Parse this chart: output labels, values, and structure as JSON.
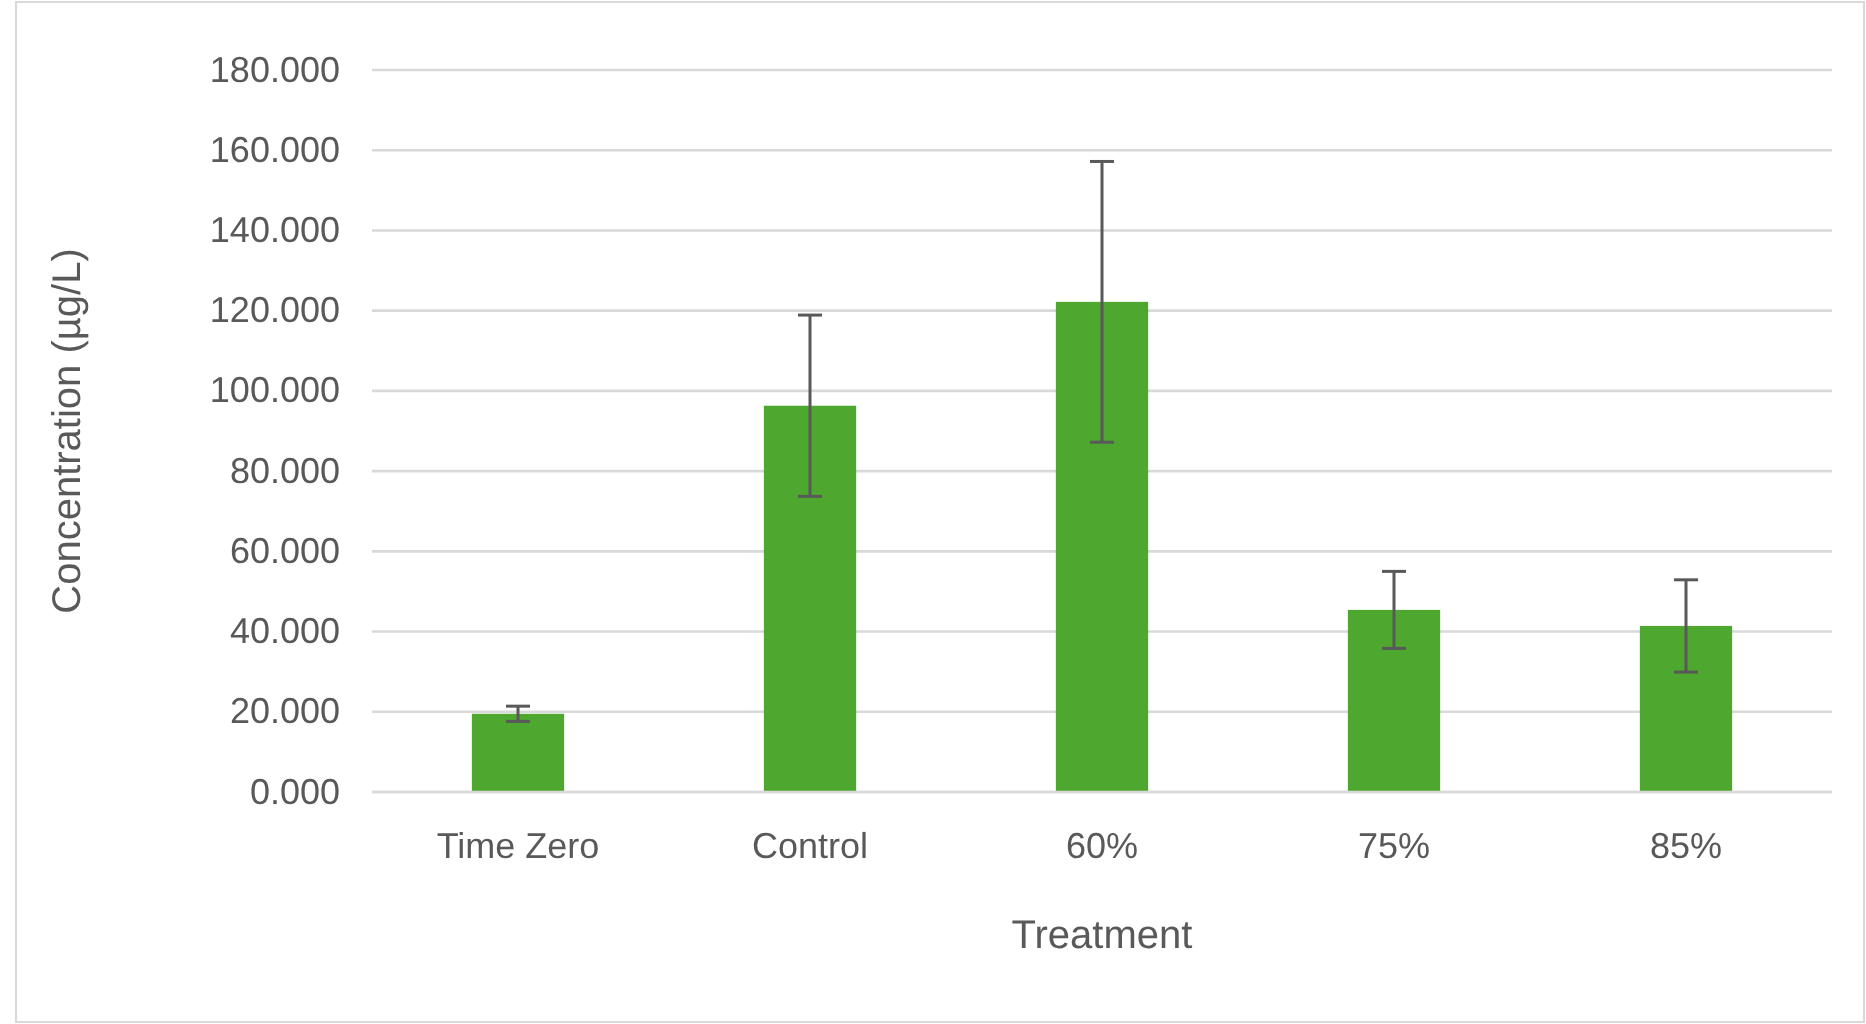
{
  "chart_data": {
    "type": "bar",
    "xlabel": "Treatment",
    "ylabel": "Concentration  (µg/L)",
    "categories": [
      "Time Zero",
      "Control",
      "60%",
      "75%",
      "85%"
    ],
    "values": [
      19.5,
      96.3,
      122.2,
      45.4,
      41.4
    ],
    "errors": [
      1.9,
      22.6,
      35,
      9.6,
      11.5
    ],
    "color": "#4ea72e",
    "ylim": [
      0,
      180
    ],
    "yticks": [
      {
        "value": 0,
        "label": "0.000"
      },
      {
        "value": 20,
        "label": "20.000"
      },
      {
        "value": 40,
        "label": "40.000"
      },
      {
        "value": 60,
        "label": "60.000"
      },
      {
        "value": 80,
        "label": "80.000"
      },
      {
        "value": 100,
        "label": "100.000"
      },
      {
        "value": 120,
        "label": "120.000"
      },
      {
        "value": 140,
        "label": "140.000"
      },
      {
        "value": 160,
        "label": "160.000"
      },
      {
        "value": 180,
        "label": "180.000"
      }
    ],
    "grid": "y"
  }
}
